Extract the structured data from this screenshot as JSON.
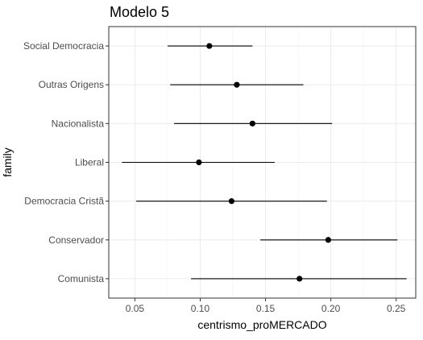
{
  "chart_data": {
    "type": "scatter",
    "subtype": "point-range (coefficient plot)",
    "title": "Modelo 5",
    "xlabel": "centrismo_proMERCADO",
    "ylabel": "family",
    "xlim": [
      0.03,
      0.265
    ],
    "x_ticks": [
      "0.05",
      "0.10",
      "0.15",
      "0.20",
      "0.25"
    ],
    "x_tick_values": [
      0.05,
      0.1,
      0.15,
      0.2,
      0.25
    ],
    "categories": [
      "Social Democracia",
      "Outras Origens",
      "Nacionalista",
      "Liberal",
      "Democracia Cristã",
      "Conservador",
      "Comunista"
    ],
    "series": [
      {
        "estimate": [
          0.107,
          0.128,
          0.14,
          0.099,
          0.124,
          0.198,
          0.176
        ],
        "lower": [
          0.075,
          0.077,
          0.08,
          0.04,
          0.051,
          0.146,
          0.093
        ],
        "upper": [
          0.14,
          0.179,
          0.201,
          0.157,
          0.197,
          0.251,
          0.258
        ]
      }
    ],
    "grid": true,
    "legend": "none",
    "colors": {
      "point": "#000000",
      "line": "#000000",
      "grid_major": "#ebebeb",
      "grid_minor": "#f5f5f5",
      "panel_border": "#333333",
      "tick_text": "#4d4d4d",
      "axis_title": "#000000"
    }
  }
}
